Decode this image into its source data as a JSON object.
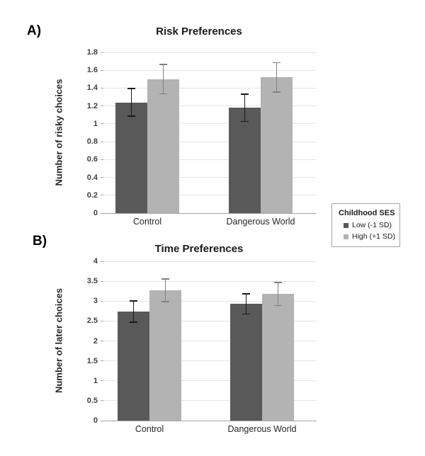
{
  "figure": {
    "background": "#ffffff"
  },
  "legend": {
    "title": "Childhood SES",
    "items": [
      {
        "label": "Low (-1 SD)",
        "color": "#595959"
      },
      {
        "label": "High (+1 SD)",
        "color": "#b3b3b3"
      }
    ]
  },
  "colors": {
    "dark_bar": "#595959",
    "light_bar": "#b3b3b3",
    "dark_error": "#1a1a1a",
    "light_error": "#808080",
    "gridline": "#e4e4e4",
    "axis_line": "#a6a6a6",
    "text": "#262626"
  },
  "chart_data": [
    {
      "type": "bar",
      "panel_label": "A)",
      "title": "Risk Preferences",
      "ylabel": "Number of risky choices",
      "xlabel": "",
      "categories": [
        "Control",
        "Dangerous World"
      ],
      "series": [
        {
          "name": "Low (-1 SD)",
          "values": [
            1.24,
            1.18
          ],
          "errors": [
            0.16,
            0.16
          ],
          "color": "#595959",
          "error_color": "#1a1a1a"
        },
        {
          "name": "High (+1 SD)",
          "values": [
            1.5,
            1.52
          ],
          "errors": [
            0.17,
            0.17
          ],
          "color": "#b3b3b3",
          "error_color": "#808080"
        }
      ],
      "ylim": [
        0,
        1.8
      ],
      "ytick_step": 0.2,
      "yticks": [
        "1.8",
        "1.6",
        "1.4",
        "1.2",
        "1",
        "0.8",
        "0.6",
        "0.4",
        "0.2",
        "0"
      ],
      "grid": true,
      "legend_position": "right"
    },
    {
      "type": "bar",
      "panel_label": "B)",
      "title": "Time Preferences",
      "ylabel": "Number of later choices",
      "xlabel": "",
      "categories": [
        "Control",
        "Dangerous World"
      ],
      "series": [
        {
          "name": "Low (-1 SD)",
          "values": [
            2.74,
            2.93
          ],
          "errors": [
            0.28,
            0.27
          ],
          "color": "#595959",
          "error_color": "#1a1a1a"
        },
        {
          "name": "High (+1 SD)",
          "values": [
            3.27,
            3.18
          ],
          "errors": [
            0.3,
            0.3
          ],
          "color": "#b3b3b3",
          "error_color": "#808080"
        }
      ],
      "ylim": [
        0,
        4
      ],
      "ytick_step": 0.5,
      "yticks": [
        "4",
        "3.5",
        "3",
        "2.5",
        "2",
        "1.5",
        "1",
        "0.5",
        "0"
      ],
      "grid": true,
      "legend_position": "right"
    }
  ]
}
